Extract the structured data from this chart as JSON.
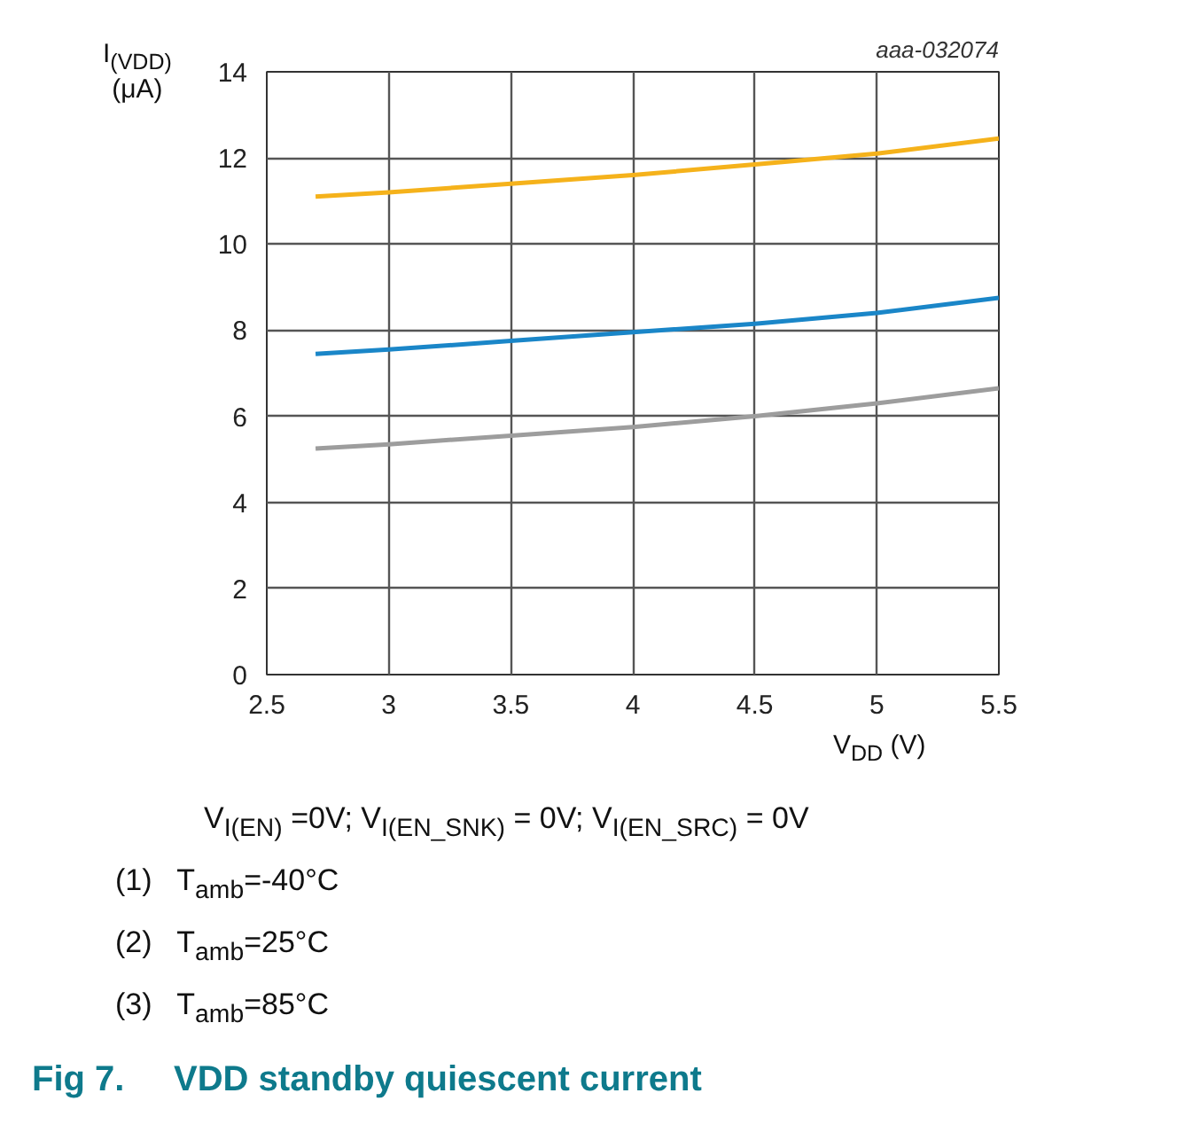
{
  "chart_data": {
    "type": "line",
    "title": "Fig 7.     VDD standby quiescent current",
    "xlabel": "V$_{DD}$ (V)",
    "ylabel": "I$_{(VDD)}$ (μA)",
    "x": [
      2.7,
      3,
      3.5,
      4,
      4.5,
      5,
      5.5
    ],
    "series": [
      {
        "color": "#f5b21b",
        "values": [
          11.1,
          11.2,
          11.4,
          11.6,
          11.85,
          12.1,
          12.45
        ]
      },
      {
        "color": "#1a86c8",
        "values": [
          7.45,
          7.55,
          7.75,
          7.95,
          8.15,
          8.4,
          8.75
        ]
      },
      {
        "color": "#9d9d9d",
        "values": [
          5.25,
          5.35,
          5.55,
          5.75,
          6.0,
          6.3,
          6.65
        ]
      }
    ],
    "xlim": [
      2.5,
      5.5
    ],
    "ylim": [
      0,
      14
    ],
    "xticks": [
      2.5,
      3,
      3.5,
      4,
      4.5,
      5,
      5.5
    ],
    "yticks": [
      0,
      2,
      4,
      6,
      8,
      10,
      12,
      14
    ],
    "grid": true,
    "annotations": [
      "aaa-032074",
      "V$_{I(EN)}$ =0V; V$_{I(EN_SNK)}$ = 0V; V$_{I(EN_SRC)}$ = 0V",
      "(1)   T$_{amb}$=-40°C",
      "(2)   T$_{amb}$=25°C",
      "(3)   T$_{amb}$=85°C"
    ]
  }
}
